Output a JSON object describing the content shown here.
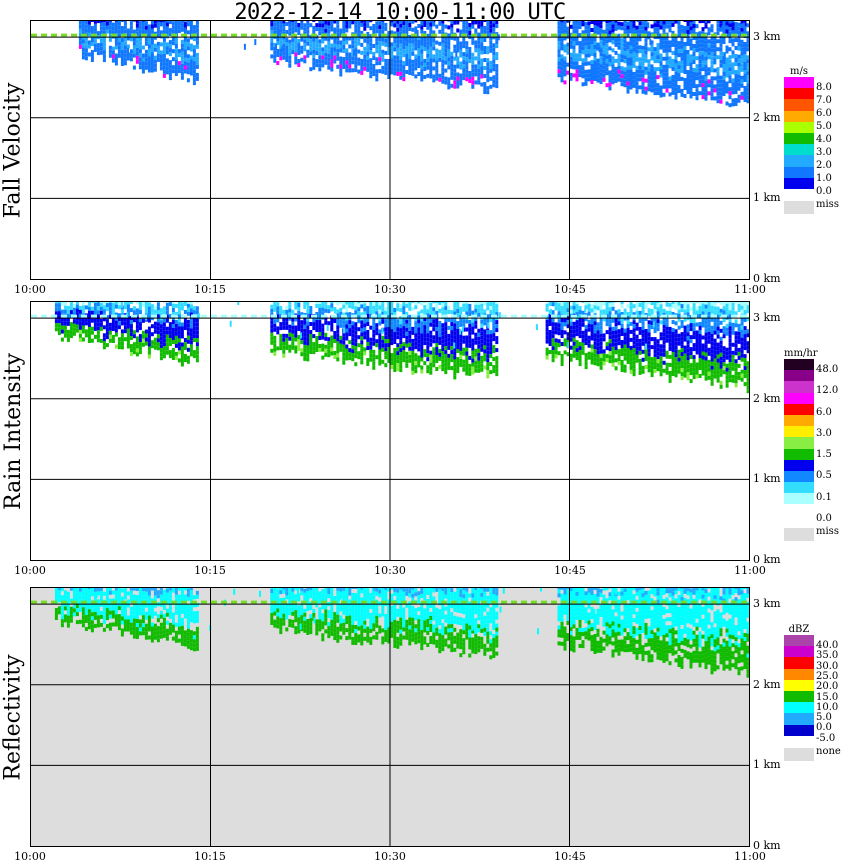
{
  "title": "2022-12-14   10:00-11:00 UTC",
  "x_ticks": [
    "10:00",
    "10:15",
    "10:30",
    "10:45",
    "11:00"
  ],
  "y_ticks": [
    "0 km",
    "1 km",
    "2 km",
    "3 km"
  ],
  "colors": {
    "missing": "#dddddd",
    "green_line": "#77dd22"
  },
  "chart_data": [
    {
      "type": "heatmap",
      "title": "Fall Velocity",
      "panel_label": "Fall Velocity",
      "units": "m/s",
      "x_range": [
        "10:00",
        "11:00"
      ],
      "y_range_km": [
        0,
        3.2
      ],
      "colorbar": {
        "colors": [
          "#0000ee",
          "#1177ff",
          "#22aaff",
          "#00ddcc",
          "#11bb00",
          "#aaff00",
          "#ffaa00",
          "#ff5500",
          "#ff0000",
          "#ff00ff"
        ],
        "labels": [
          "0.0",
          "1.0",
          "2.0",
          "3.0",
          "4.0",
          "5.0",
          "6.0",
          "7.0",
          "8.0"
        ],
        "missing_label": "miss"
      },
      "echo_clusters": [
        {
          "start": "10:04",
          "end": "10:14",
          "top_km": 3.3,
          "base_km": 2.4
        },
        {
          "start": "10:20",
          "end": "10:39",
          "top_km": 3.3,
          "base_km": 2.3
        },
        {
          "start": "10:44",
          "end": "11:00",
          "top_km": 3.3,
          "base_km": 2.1
        }
      ]
    },
    {
      "type": "heatmap",
      "title": "Rain Intensity",
      "panel_label": "Rain Intensity",
      "units": "mm/hr",
      "x_range": [
        "10:00",
        "11:00"
      ],
      "y_range_km": [
        0,
        3.2
      ],
      "colorbar": {
        "colors": [
          "#ffffff",
          "#aaffff",
          "#33ddff",
          "#1188ff",
          "#0000ee",
          "#11bb00",
          "#88ee44",
          "#ffee00",
          "#ffaa00",
          "#ff0000",
          "#ff00ff",
          "#cc33cc",
          "#880088",
          "#220022"
        ],
        "labels": [
          "0.0",
          "0.1",
          "0.5",
          "1.5",
          "3.0",
          "6.0",
          "12.0",
          "48.0"
        ],
        "missing_label": "miss"
      },
      "echo_clusters": [
        {
          "start": "10:02",
          "end": "10:14",
          "top_km": 3.3,
          "base_km": 2.4
        },
        {
          "start": "10:20",
          "end": "10:39",
          "top_km": 3.3,
          "base_km": 2.2
        },
        {
          "start": "10:43",
          "end": "11:00",
          "top_km": 3.3,
          "base_km": 2.1
        }
      ]
    },
    {
      "type": "heatmap",
      "title": "Reflectivity",
      "panel_label": "Reflectivity",
      "units": "dBZ",
      "x_range": [
        "10:00",
        "11:00"
      ],
      "y_range_km": [
        0,
        3.2
      ],
      "colorbar": {
        "colors": [
          "#0000cc",
          "#22aaff",
          "#00ffff",
          "#11bb00",
          "#ffff00",
          "#ff8800",
          "#ff0000",
          "#cc00cc",
          "#aa44aa"
        ],
        "labels": [
          "-5.0",
          "0.0",
          "5.0",
          "10.0",
          "15.0",
          "20.0",
          "25.0",
          "30.0",
          "35.0",
          "40.0"
        ],
        "missing_label": "none"
      },
      "echo_clusters": [
        {
          "start": "10:02",
          "end": "10:14",
          "top_km": 3.3,
          "base_km": 2.4
        },
        {
          "start": "10:20",
          "end": "10:39",
          "top_km": 3.3,
          "base_km": 2.3
        },
        {
          "start": "10:44",
          "end": "11:00",
          "top_km": 3.3,
          "base_km": 2.1
        }
      ]
    }
  ]
}
